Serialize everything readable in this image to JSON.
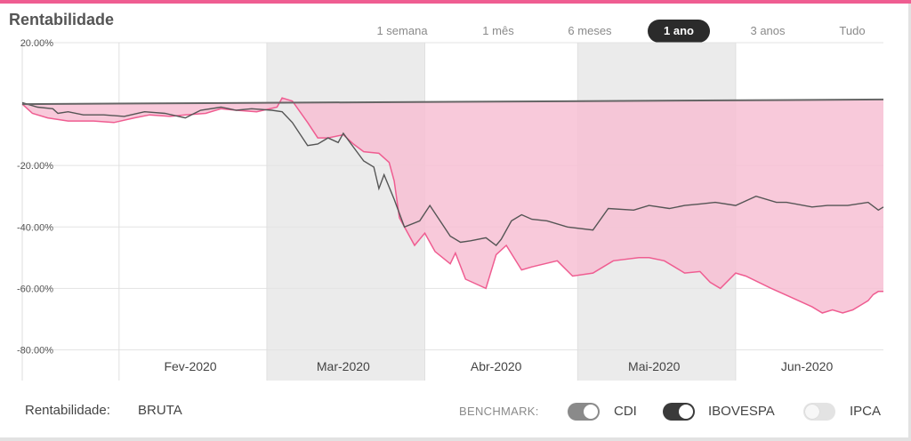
{
  "header": {
    "title": "Rentabilidade"
  },
  "range_tabs": [
    {
      "label": "1 semana",
      "active": false
    },
    {
      "label": "1 mês",
      "active": false
    },
    {
      "label": "6 meses",
      "active": false
    },
    {
      "label": "1 ano",
      "active": true
    },
    {
      "label": "3 anos",
      "active": false
    },
    {
      "label": "Tudo",
      "active": false
    }
  ],
  "footer": {
    "rent_label": "Rentabilidade:",
    "rent_value": "BRUTA",
    "benchmark_label": "BENCHMARK:",
    "benchmarks": [
      {
        "label": "CDI",
        "enabled": true
      },
      {
        "label": "IBOVESPA",
        "enabled": true
      },
      {
        "label": "IPCA",
        "enabled": false
      }
    ]
  },
  "colors": {
    "accent": "#ef5d91",
    "fill": "#f7bfd3",
    "cdi": "#666666",
    "ibovespa": "#555555",
    "band": "#ebebeb"
  },
  "chart_data": {
    "type": "line",
    "title": "",
    "xlabel": "",
    "ylabel": "",
    "ylim": [
      -90,
      20
    ],
    "y_ticks": [
      "20.00%",
      "-20.00%",
      "-40.00%",
      "-60.00%",
      "-80.00%"
    ],
    "y_tick_values": [
      20,
      -20,
      -40,
      -60,
      -80
    ],
    "x_tick_labels": [
      "Fev-2020",
      "Mar-2020",
      "Abr-2020",
      "Mai-2020",
      "Jun-2020"
    ],
    "x_range": [
      "2020-01-13",
      "2020-06-30"
    ],
    "shaded_months": [
      "Mar-2020",
      "Mai-2020"
    ],
    "grid": true,
    "series": [
      {
        "name": "",
        "fill": true,
        "points": [
          [
            "2020-01-13",
            0
          ],
          [
            "2020-01-15",
            -3
          ],
          [
            "2020-01-18",
            -4.5
          ],
          [
            "2020-01-22",
            -5.5
          ],
          [
            "2020-01-27",
            -5.5
          ],
          [
            "2020-01-31",
            -6
          ],
          [
            "2020-02-04",
            -4.5
          ],
          [
            "2020-02-07",
            -3.5
          ],
          [
            "2020-02-11",
            -4
          ],
          [
            "2020-02-14",
            -3.5
          ],
          [
            "2020-02-18",
            -3
          ],
          [
            "2020-02-21",
            -1.5
          ],
          [
            "2020-02-24",
            -2
          ],
          [
            "2020-02-28",
            -2.5
          ],
          [
            "2020-03-03",
            -1
          ],
          [
            "2020-03-04",
            2
          ],
          [
            "2020-03-06",
            1
          ],
          [
            "2020-03-09",
            -6
          ],
          [
            "2020-03-11",
            -11
          ],
          [
            "2020-03-13",
            -11
          ],
          [
            "2020-03-16",
            -10
          ],
          [
            "2020-03-18",
            -13
          ],
          [
            "2020-03-20",
            -15.5
          ],
          [
            "2020-03-23",
            -16
          ],
          [
            "2020-03-25",
            -19
          ],
          [
            "2020-03-26",
            -25
          ],
          [
            "2020-03-27",
            -37
          ],
          [
            "2020-03-30",
            -46
          ],
          [
            "2020-04-01",
            -42
          ],
          [
            "2020-04-03",
            -48
          ],
          [
            "2020-04-06",
            -52
          ],
          [
            "2020-04-07",
            -48.5
          ],
          [
            "2020-04-09",
            -57
          ],
          [
            "2020-04-13",
            -60
          ],
          [
            "2020-04-15",
            -49
          ],
          [
            "2020-04-17",
            -46
          ],
          [
            "2020-04-20",
            -54
          ],
          [
            "2020-04-22",
            -53
          ],
          [
            "2020-04-27",
            -51
          ],
          [
            "2020-04-30",
            -56
          ],
          [
            "2020-05-04",
            -55
          ],
          [
            "2020-05-06",
            -53
          ],
          [
            "2020-05-08",
            -51
          ],
          [
            "2020-05-13",
            -50
          ],
          [
            "2020-05-15",
            -50
          ],
          [
            "2020-05-18",
            -51
          ],
          [
            "2020-05-20",
            -53
          ],
          [
            "2020-05-22",
            -55
          ],
          [
            "2020-05-25",
            -54.5
          ],
          [
            "2020-05-27",
            -58
          ],
          [
            "2020-05-29",
            -60
          ],
          [
            "2020-06-01",
            -55
          ],
          [
            "2020-06-03",
            -56
          ],
          [
            "2020-06-08",
            -60
          ],
          [
            "2020-06-12",
            -63
          ],
          [
            "2020-06-16",
            -66
          ],
          [
            "2020-06-18",
            -68
          ],
          [
            "2020-06-20",
            -67
          ],
          [
            "2020-06-22",
            -68
          ],
          [
            "2020-06-24",
            -67
          ],
          [
            "2020-06-26",
            -65
          ],
          [
            "2020-06-27",
            -64
          ],
          [
            "2020-06-28",
            -62
          ],
          [
            "2020-06-29",
            -61
          ],
          [
            "2020-06-30",
            -61
          ]
        ]
      },
      {
        "name": "CDI",
        "points": [
          [
            "2020-01-13",
            0
          ],
          [
            "2020-06-30",
            1.5
          ]
        ]
      },
      {
        "name": "IBOVESPA",
        "points": [
          [
            "2020-01-13",
            0.5
          ],
          [
            "2020-01-16",
            -1
          ],
          [
            "2020-01-19",
            -1.5
          ],
          [
            "2020-01-20",
            -3
          ],
          [
            "2020-01-22",
            -2.5
          ],
          [
            "2020-01-25",
            -3.5
          ],
          [
            "2020-01-29",
            -3.5
          ],
          [
            "2020-02-02",
            -4
          ],
          [
            "2020-02-06",
            -2.5
          ],
          [
            "2020-02-10",
            -3
          ],
          [
            "2020-02-14",
            -4.5
          ],
          [
            "2020-02-17",
            -2
          ],
          [
            "2020-02-21",
            -1
          ],
          [
            "2020-02-24",
            -2
          ],
          [
            "2020-02-27",
            -1.5
          ],
          [
            "2020-03-02",
            -2
          ],
          [
            "2020-03-04",
            -2.5
          ],
          [
            "2020-03-06",
            -6
          ],
          [
            "2020-03-09",
            -13.5
          ],
          [
            "2020-03-11",
            -13
          ],
          [
            "2020-03-13",
            -11
          ],
          [
            "2020-03-15",
            -12.5
          ],
          [
            "2020-03-16",
            -9.5
          ],
          [
            "2020-03-18",
            -14
          ],
          [
            "2020-03-20",
            -18.5
          ],
          [
            "2020-03-22",
            -20.5
          ],
          [
            "2020-03-23",
            -27.5
          ],
          [
            "2020-03-24",
            -23
          ],
          [
            "2020-03-26",
            -31
          ],
          [
            "2020-03-28",
            -40
          ],
          [
            "2020-03-31",
            -38
          ],
          [
            "2020-04-02",
            -33
          ],
          [
            "2020-04-06",
            -43
          ],
          [
            "2020-04-08",
            -45
          ],
          [
            "2020-04-10",
            -44.5
          ],
          [
            "2020-04-13",
            -43.5
          ],
          [
            "2020-04-15",
            -46
          ],
          [
            "2020-04-16",
            -44
          ],
          [
            "2020-04-18",
            -38
          ],
          [
            "2020-04-20",
            -36
          ],
          [
            "2020-04-22",
            -37.5
          ],
          [
            "2020-04-25",
            -38
          ],
          [
            "2020-04-29",
            -40
          ],
          [
            "2020-05-04",
            -41
          ],
          [
            "2020-05-07",
            -34
          ],
          [
            "2020-05-12",
            -34.5
          ],
          [
            "2020-05-15",
            -33
          ],
          [
            "2020-05-19",
            -34
          ],
          [
            "2020-05-22",
            -33
          ],
          [
            "2020-05-25",
            -32.5
          ],
          [
            "2020-05-28",
            -32
          ],
          [
            "2020-06-01",
            -33
          ],
          [
            "2020-06-05",
            -30
          ],
          [
            "2020-06-09",
            -32
          ],
          [
            "2020-06-11",
            -32
          ],
          [
            "2020-06-16",
            -33.5
          ],
          [
            "2020-06-19",
            -33
          ],
          [
            "2020-06-23",
            -33
          ],
          [
            "2020-06-27",
            -32
          ],
          [
            "2020-06-29",
            -34.5
          ],
          [
            "2020-06-30",
            -33.5
          ]
        ]
      }
    ]
  }
}
